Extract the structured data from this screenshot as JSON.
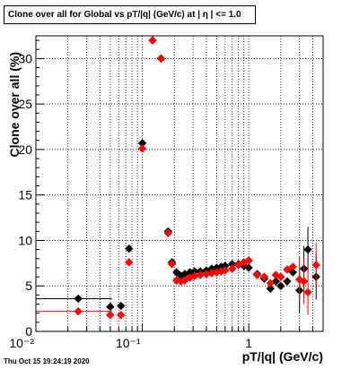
{
  "title": "Clone  over all for Global vs pT/|q| (GeV/c) at |  η | <= 1.0",
  "footer": "Thu Oct 15 19:24:19 2020",
  "chart_data": {
    "type": "scatter",
    "xlabel": "pT/|q| (GeV/c)",
    "ylabel": "Clone  over all (%)",
    "xscale": "log",
    "xlim": [
      0.01,
      5
    ],
    "ylim": [
      0,
      32.5
    ],
    "xticks": [
      {
        "v": 0.01,
        "label": "10⁻²"
      },
      {
        "v": 0.1,
        "label": "10⁻¹"
      },
      {
        "v": 1,
        "label": "1"
      }
    ],
    "yticks": [
      0,
      5,
      10,
      15,
      20,
      25,
      30
    ],
    "grid": true,
    "series": [
      {
        "color": "#000000",
        "marker": "diamond",
        "points": [
          {
            "x": 0.025,
            "y": 3.6
          },
          {
            "x": 0.05,
            "y": 2.7
          },
          {
            "x": 0.063,
            "y": 2.8
          },
          {
            "x": 0.075,
            "y": 9.1
          },
          {
            "x": 0.1,
            "y": 20.7
          },
          {
            "x": 0.125,
            "y": 32.0
          },
          {
            "x": 0.15,
            "y": 30.0
          },
          {
            "x": 0.175,
            "y": 11.0
          },
          {
            "x": 0.19,
            "y": 7.6
          },
          {
            "x": 0.21,
            "y": 6.5
          },
          {
            "x": 0.23,
            "y": 6.1
          },
          {
            "x": 0.25,
            "y": 6.3
          },
          {
            "x": 0.28,
            "y": 6.5
          },
          {
            "x": 0.31,
            "y": 6.6
          },
          {
            "x": 0.35,
            "y": 6.6
          },
          {
            "x": 0.4,
            "y": 6.7
          },
          {
            "x": 0.45,
            "y": 6.9
          },
          {
            "x": 0.5,
            "y": 7.0
          },
          {
            "x": 0.55,
            "y": 7.1
          },
          {
            "x": 0.6,
            "y": 7.2
          },
          {
            "x": 0.7,
            "y": 7.4
          },
          {
            "x": 0.8,
            "y": 7.4
          },
          {
            "x": 0.9,
            "y": 7.2
          },
          {
            "x": 1.0,
            "y": 7.0
          },
          {
            "x": 1.2,
            "y": 6.3
          },
          {
            "x": 1.4,
            "y": 5.8
          },
          {
            "x": 1.6,
            "y": 4.7
          },
          {
            "x": 1.8,
            "y": 5.5
          },
          {
            "x": 2.0,
            "y": 5.0
          },
          {
            "x": 2.3,
            "y": 5.5
          },
          {
            "x": 2.6,
            "y": 6.5
          },
          {
            "x": 3.0,
            "y": 4.5
          },
          {
            "x": 3.3,
            "y": 6.9
          },
          {
            "x": 3.6,
            "y": 9.0
          },
          {
            "x": 4.3,
            "y": 6.0
          }
        ]
      },
      {
        "color": "#ff0000",
        "marker": "diamond",
        "points": [
          {
            "x": 0.025,
            "y": 2.2
          },
          {
            "x": 0.05,
            "y": 1.8
          },
          {
            "x": 0.063,
            "y": 1.8
          },
          {
            "x": 0.075,
            "y": 7.6
          },
          {
            "x": 0.1,
            "y": 20.1
          },
          {
            "x": 0.125,
            "y": 32.0
          },
          {
            "x": 0.15,
            "y": 30.0
          },
          {
            "x": 0.175,
            "y": 10.8
          },
          {
            "x": 0.19,
            "y": 7.4
          },
          {
            "x": 0.21,
            "y": 5.6
          },
          {
            "x": 0.23,
            "y": 5.5
          },
          {
            "x": 0.25,
            "y": 5.6
          },
          {
            "x": 0.28,
            "y": 5.9
          },
          {
            "x": 0.31,
            "y": 6.1
          },
          {
            "x": 0.35,
            "y": 6.2
          },
          {
            "x": 0.4,
            "y": 6.3
          },
          {
            "x": 0.45,
            "y": 6.4
          },
          {
            "x": 0.5,
            "y": 6.5
          },
          {
            "x": 0.55,
            "y": 6.6
          },
          {
            "x": 0.6,
            "y": 6.7
          },
          {
            "x": 0.7,
            "y": 6.9
          },
          {
            "x": 0.8,
            "y": 7.3
          },
          {
            "x": 0.9,
            "y": 7.6
          },
          {
            "x": 1.0,
            "y": 7.8
          },
          {
            "x": 1.2,
            "y": 6.2
          },
          {
            "x": 1.4,
            "y": 6.0
          },
          {
            "x": 1.6,
            "y": 5.3
          },
          {
            "x": 1.8,
            "y": 6.2
          },
          {
            "x": 2.0,
            "y": 6.0
          },
          {
            "x": 2.3,
            "y": 6.8
          },
          {
            "x": 2.6,
            "y": 7.1
          },
          {
            "x": 3.0,
            "y": 5.7
          },
          {
            "x": 3.3,
            "y": 5.5
          },
          {
            "x": 3.6,
            "y": 4.3
          },
          {
            "x": 4.3,
            "y": 7.3
          }
        ]
      }
    ]
  }
}
